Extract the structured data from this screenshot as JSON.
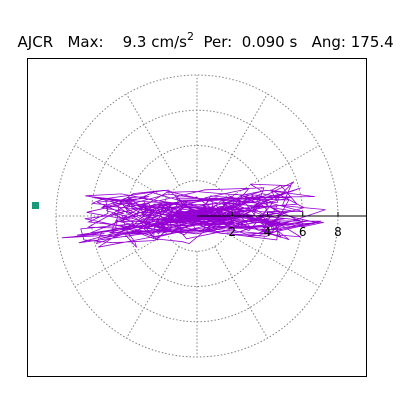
{
  "header": {
    "station": "AJCR",
    "max_label": "Max:",
    "max_value": "9.3 cm/s",
    "max_exp": "2",
    "per_label": "Per:",
    "per_value": "0.090 s",
    "ang_label": "Ang:",
    "ang_value": "175.4"
  },
  "colors": {
    "trace": "#9400d3",
    "grid": "#808080",
    "marker": "#1a9a7a",
    "frame": "#000000"
  },
  "chart_data": {
    "type": "scatter",
    "title": "AJCR  Max: 9.3 cm/s2  Per: 0.090 s  Ang: 175.4",
    "polar": true,
    "rings": [
      2,
      4,
      6,
      8
    ],
    "spokes_deg": [
      0,
      30,
      60,
      90,
      120,
      150,
      180,
      210,
      240,
      270,
      300,
      330
    ],
    "r_max": 9.3,
    "direction_deg": 175.4,
    "tick_labels": [
      "2",
      "4",
      "6",
      "8"
    ],
    "grid": true
  }
}
